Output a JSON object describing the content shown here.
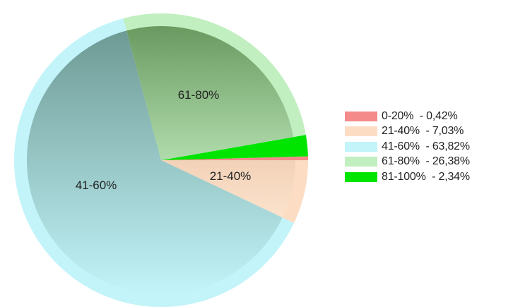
{
  "chart_data": {
    "type": "pie",
    "title": "",
    "slices": [
      {
        "label": "0-20%",
        "value": 0.42,
        "legend_text": "0-20%  - 0,42%",
        "color": "#f58a8a",
        "inner_label": ""
      },
      {
        "label": "21-40%",
        "value": 7.03,
        "legend_text": "21-40%  - 7,03%",
        "color": "#fcdcc2",
        "inner_label": "21-40%"
      },
      {
        "label": "41-60%",
        "value": 63.82,
        "legend_text": "41-60%  - 63,82%",
        "color": "#c2f4f9",
        "inner_label": "41-60%"
      },
      {
        "label": "61-80%",
        "value": 26.38,
        "legend_text": "61-80%  - 26,38%",
        "color": "#c1efc0",
        "inner_label": "61-80%"
      },
      {
        "label": "81-100%",
        "value": 2.34,
        "legend_text": "81-100%  - 2,34%",
        "color": "#00e500",
        "inner_label": ""
      }
    ],
    "legend_position": "right"
  }
}
